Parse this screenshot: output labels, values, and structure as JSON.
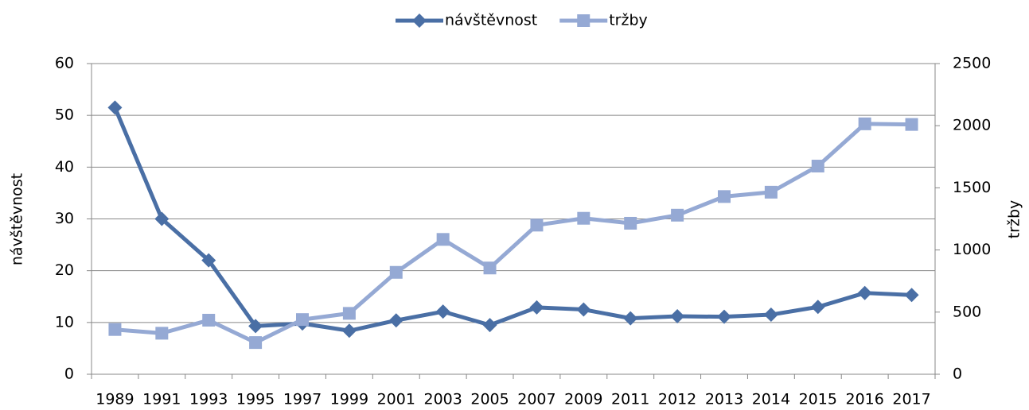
{
  "chart_data": {
    "type": "line",
    "categories": [
      "1989",
      "1991",
      "1993",
      "1995",
      "1997",
      "1999",
      "2001",
      "2003",
      "2005",
      "2007",
      "2009",
      "2011",
      "2012",
      "2013",
      "2014",
      "2015",
      "2016",
      "2017"
    ],
    "series": [
      {
        "name": "návštěvnost",
        "color": "#4a6fa5",
        "marker": "diamond",
        "axis": "y",
        "values": [
          51.5,
          30,
          22,
          9.3,
          9.8,
          8.4,
          10.4,
          12.1,
          9.5,
          12.9,
          12.5,
          10.8,
          11.2,
          11.1,
          11.5,
          13,
          15.7,
          15.3
        ]
      },
      {
        "name": "tržby",
        "color": "#95a9d4",
        "marker": "square",
        "axis": "y2",
        "values": [
          360,
          330,
          435,
          255,
          440,
          490,
          820,
          1085,
          855,
          1200,
          1255,
          1215,
          1280,
          1430,
          1465,
          1675,
          2015,
          2010
        ]
      }
    ],
    "ylabel": "návštěvnost",
    "y2label": "tržby",
    "ylim": [
      0,
      60
    ],
    "yticks": [
      0,
      10,
      20,
      30,
      40,
      50,
      60
    ],
    "y2lim": [
      0,
      2500
    ],
    "y2ticks": [
      0,
      500,
      1000,
      1500,
      2000,
      2500
    ],
    "grid": true,
    "legend": "top"
  }
}
